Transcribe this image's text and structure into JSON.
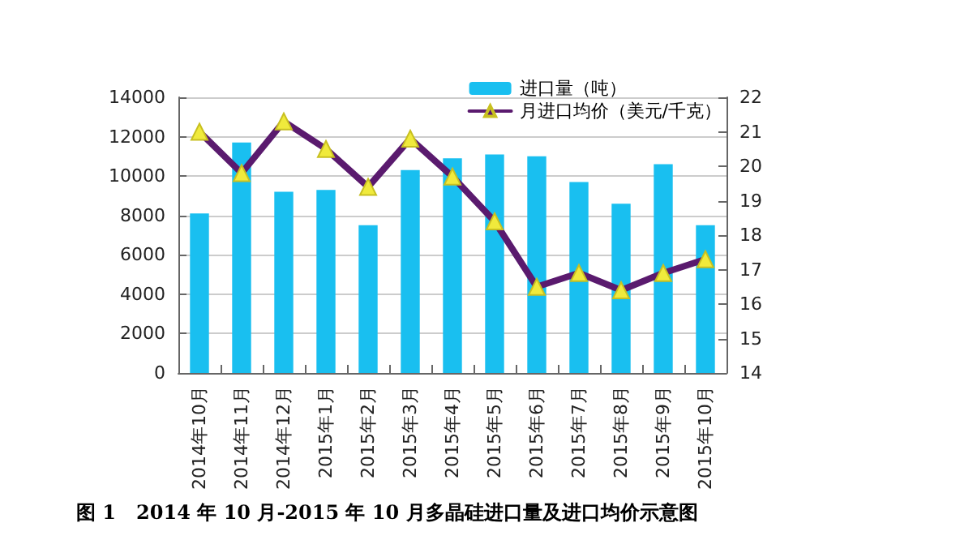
{
  "chart_data": {
    "type": "bar",
    "title": "图 1   2014 年 10 月-2015 年 10 月多晶硅进口量及进口均价示意图",
    "categories": [
      "2014年10月",
      "2014年11月",
      "2014年12月",
      "2015年1月",
      "2015年2月",
      "2015年3月",
      "2015年4月",
      "2015年5月",
      "2015年6月",
      "2015年7月",
      "2015年8月",
      "2015年9月",
      "2015年10月"
    ],
    "series": [
      {
        "name": "进口量（吨）",
        "color": "#19bff0",
        "values": [
          8100,
          11700,
          9200,
          9300,
          7500,
          10300,
          10900,
          11100,
          11000,
          9700,
          8600,
          10600,
          7500
        ]
      },
      {
        "name": "月进口均价（美元/千克）",
        "type": "line",
        "axis": "y2",
        "color": "#5a1a6e",
        "marker": "triangle",
        "values": [
          21.0,
          19.8,
          21.3,
          20.5,
          19.4,
          20.8,
          19.7,
          18.4,
          16.5,
          16.9,
          16.4,
          16.9,
          17.3
        ]
      }
    ],
    "ylim": [
      0,
      14000
    ],
    "yticks": [
      0,
      2000,
      4000,
      6000,
      8000,
      10000,
      12000,
      14000
    ],
    "y2lim": [
      14,
      22
    ],
    "y2ticks": [
      14,
      15,
      16,
      17,
      18,
      19,
      20,
      21,
      22
    ],
    "grid": "y",
    "legend": "top right"
  }
}
